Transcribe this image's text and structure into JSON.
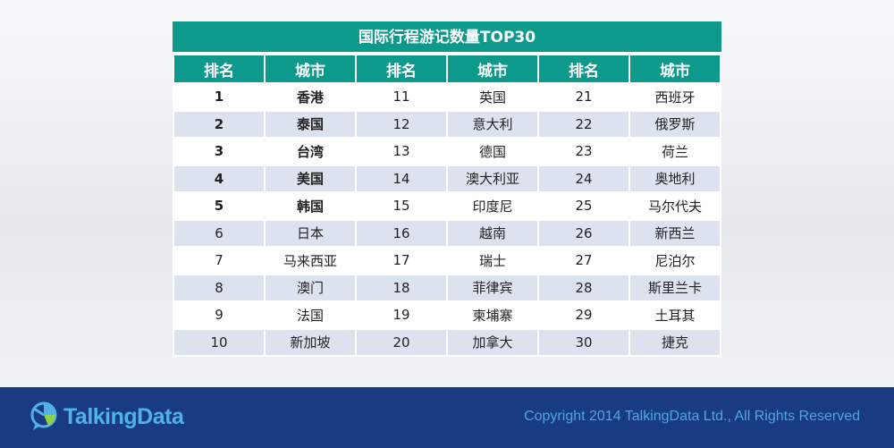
{
  "table": {
    "title": "国际行程游记数量TOP30",
    "headers": [
      "排名",
      "城市",
      "排名",
      "城市",
      "排名",
      "城市"
    ],
    "rows": [
      [
        {
          "rank": "1",
          "city": "香港"
        },
        {
          "rank": "11",
          "city": "英国"
        },
        {
          "rank": "21",
          "city": "西班牙"
        }
      ],
      [
        {
          "rank": "2",
          "city": "泰国"
        },
        {
          "rank": "12",
          "city": "意大利"
        },
        {
          "rank": "22",
          "city": "俄罗斯"
        }
      ],
      [
        {
          "rank": "3",
          "city": "台湾"
        },
        {
          "rank": "13",
          "city": "德国"
        },
        {
          "rank": "23",
          "city": "荷兰"
        }
      ],
      [
        {
          "rank": "4",
          "city": "美国"
        },
        {
          "rank": "14",
          "city": "澳大利亚"
        },
        {
          "rank": "24",
          "city": "奥地利"
        }
      ],
      [
        {
          "rank": "5",
          "city": "韩国"
        },
        {
          "rank": "15",
          "city": "印度尼"
        },
        {
          "rank": "25",
          "city": "马尔代夫"
        }
      ],
      [
        {
          "rank": "6",
          "city": "日本"
        },
        {
          "rank": "16",
          "city": "越南"
        },
        {
          "rank": "26",
          "city": "新西兰"
        }
      ],
      [
        {
          "rank": "7",
          "city": "马来西亚"
        },
        {
          "rank": "17",
          "city": "瑞士"
        },
        {
          "rank": "27",
          "city": "尼泊尔"
        }
      ],
      [
        {
          "rank": "8",
          "city": "澳门"
        },
        {
          "rank": "18",
          "city": "菲律宾"
        },
        {
          "rank": "28",
          "city": "斯里兰卡"
        }
      ],
      [
        {
          "rank": "9",
          "city": "法国"
        },
        {
          "rank": "19",
          "city": "柬埔寨"
        },
        {
          "rank": "29",
          "city": "土耳其"
        }
      ],
      [
        {
          "rank": "10",
          "city": "新加坡"
        },
        {
          "rank": "20",
          "city": "加拿大"
        },
        {
          "rank": "30",
          "city": "捷克"
        }
      ]
    ],
    "bold_ranks": 5
  },
  "footer": {
    "logo_text": "TalkingData",
    "logo_icon": "talkingdata-logo-icon",
    "copyright": "Copyright 2014 TalkingData Ltd., All Rights Reserved"
  },
  "colors": {
    "header_bg": "#0d9a8d",
    "row_alt_bg": "#dde2ef",
    "footer_bg": "#183b82",
    "footer_text": "#4fa6e0"
  }
}
